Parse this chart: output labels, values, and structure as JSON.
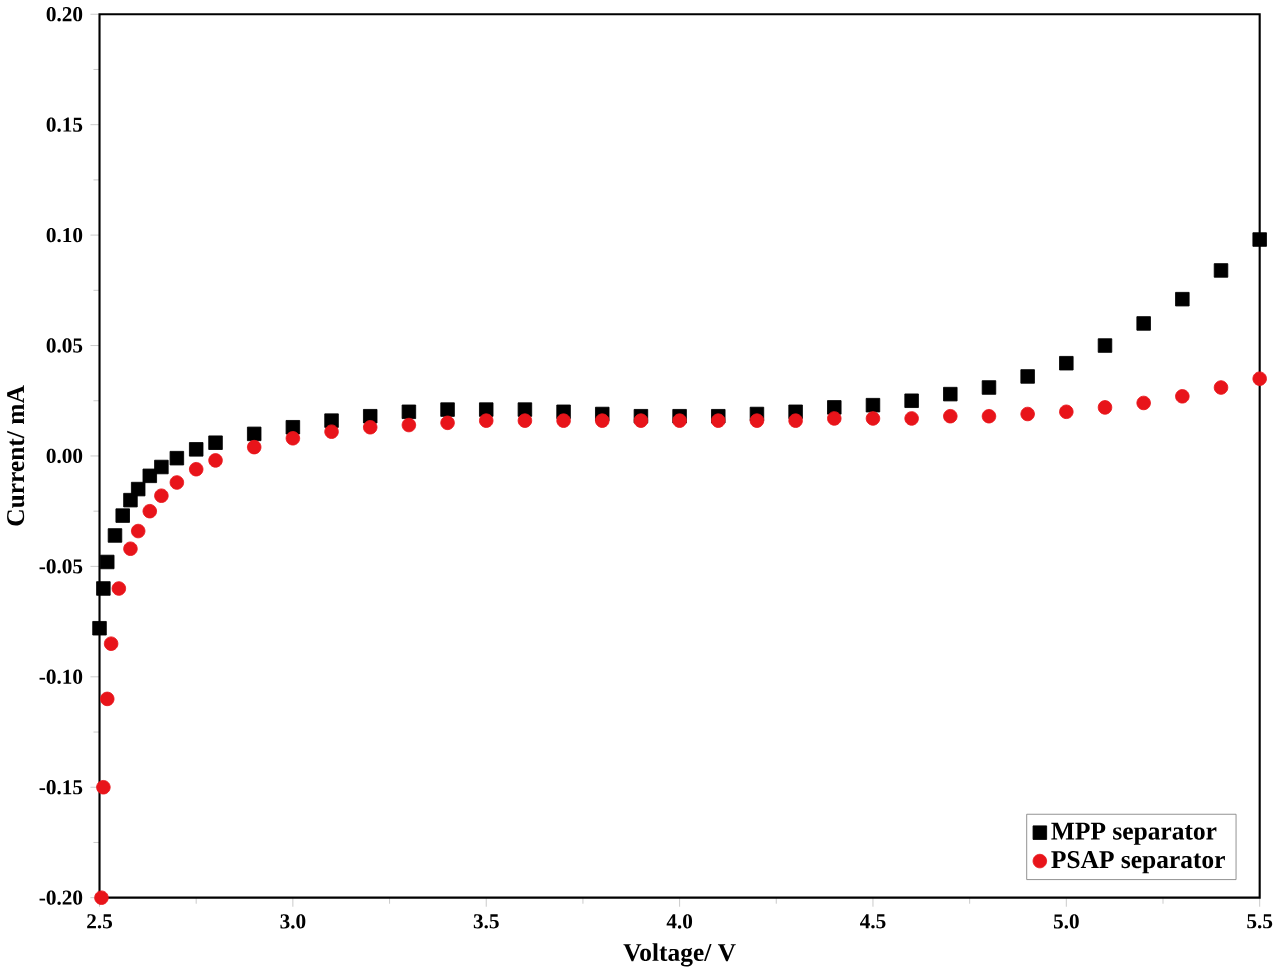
{
  "chart_data": {
    "type": "scatter",
    "xlabel": "Voltage/ V",
    "ylabel": "Current/ mA",
    "xlim": [
      2.5,
      5.5
    ],
    "ylim": [
      -0.2,
      0.2
    ],
    "xticks": [
      2.5,
      {
        "value": 3,
        "label": "3.0"
      },
      3.5,
      {
        "value": 4,
        "label": "4.0"
      },
      4.5,
      {
        "value": 5,
        "label": "5.0"
      },
      5.5
    ],
    "yticks": [
      {
        "value": -0.2,
        "label": "-0.20"
      },
      -0.15,
      {
        "value": -0.1,
        "label": "-0.10"
      },
      -0.05,
      {
        "value": 0,
        "label": "0.00"
      },
      0.05,
      {
        "value": 0.1,
        "label": "0.10"
      },
      0.15,
      {
        "value": 0.2,
        "label": "0.20"
      }
    ],
    "legend": "bottom right",
    "grid": false,
    "series": [
      {
        "name": "MPP separator",
        "color": "#000000",
        "marker": "square",
        "x": [
          2.5,
          2.51,
          2.52,
          2.54,
          2.56,
          2.58,
          2.6,
          2.63,
          2.66,
          2.7,
          2.75,
          2.8,
          2.9,
          3.0,
          3.1,
          3.2,
          3.3,
          3.4,
          3.5,
          3.6,
          3.7,
          3.8,
          3.9,
          4.0,
          4.1,
          4.2,
          4.3,
          4.4,
          4.5,
          4.6,
          4.7,
          4.8,
          4.9,
          5.0,
          5.1,
          5.2,
          5.3,
          5.4,
          5.5
        ],
        "values": [
          -0.078,
          -0.06,
          -0.048,
          -0.036,
          -0.027,
          -0.02,
          -0.015,
          -0.009,
          -0.005,
          -0.001,
          0.003,
          0.006,
          0.01,
          0.013,
          0.016,
          0.018,
          0.02,
          0.021,
          0.021,
          0.021,
          0.02,
          0.019,
          0.018,
          0.018,
          0.018,
          0.019,
          0.02,
          0.022,
          0.023,
          0.025,
          0.028,
          0.031,
          0.036,
          0.042,
          0.05,
          0.06,
          0.071,
          0.084,
          0.098
        ]
      },
      {
        "name": "PSAP separator",
        "color": "#e8141a",
        "marker": "circle",
        "x": [
          2.505,
          2.51,
          2.52,
          2.53,
          2.55,
          2.58,
          2.6,
          2.63,
          2.66,
          2.7,
          2.75,
          2.8,
          2.9,
          3.0,
          3.1,
          3.2,
          3.3,
          3.4,
          3.5,
          3.6,
          3.7,
          3.8,
          3.9,
          4.0,
          4.1,
          4.2,
          4.3,
          4.4,
          4.5,
          4.6,
          4.7,
          4.8,
          4.9,
          5.0,
          5.1,
          5.2,
          5.3,
          5.4,
          5.5
        ],
        "values": [
          -0.2,
          -0.15,
          -0.11,
          -0.085,
          -0.06,
          -0.042,
          -0.034,
          -0.025,
          -0.018,
          -0.012,
          -0.006,
          -0.002,
          0.004,
          0.008,
          0.011,
          0.013,
          0.014,
          0.015,
          0.016,
          0.016,
          0.016,
          0.016,
          0.016,
          0.016,
          0.016,
          0.016,
          0.016,
          0.017,
          0.017,
          0.017,
          0.018,
          0.018,
          0.019,
          0.02,
          0.022,
          0.024,
          0.027,
          0.031,
          0.035
        ]
      }
    ]
  }
}
